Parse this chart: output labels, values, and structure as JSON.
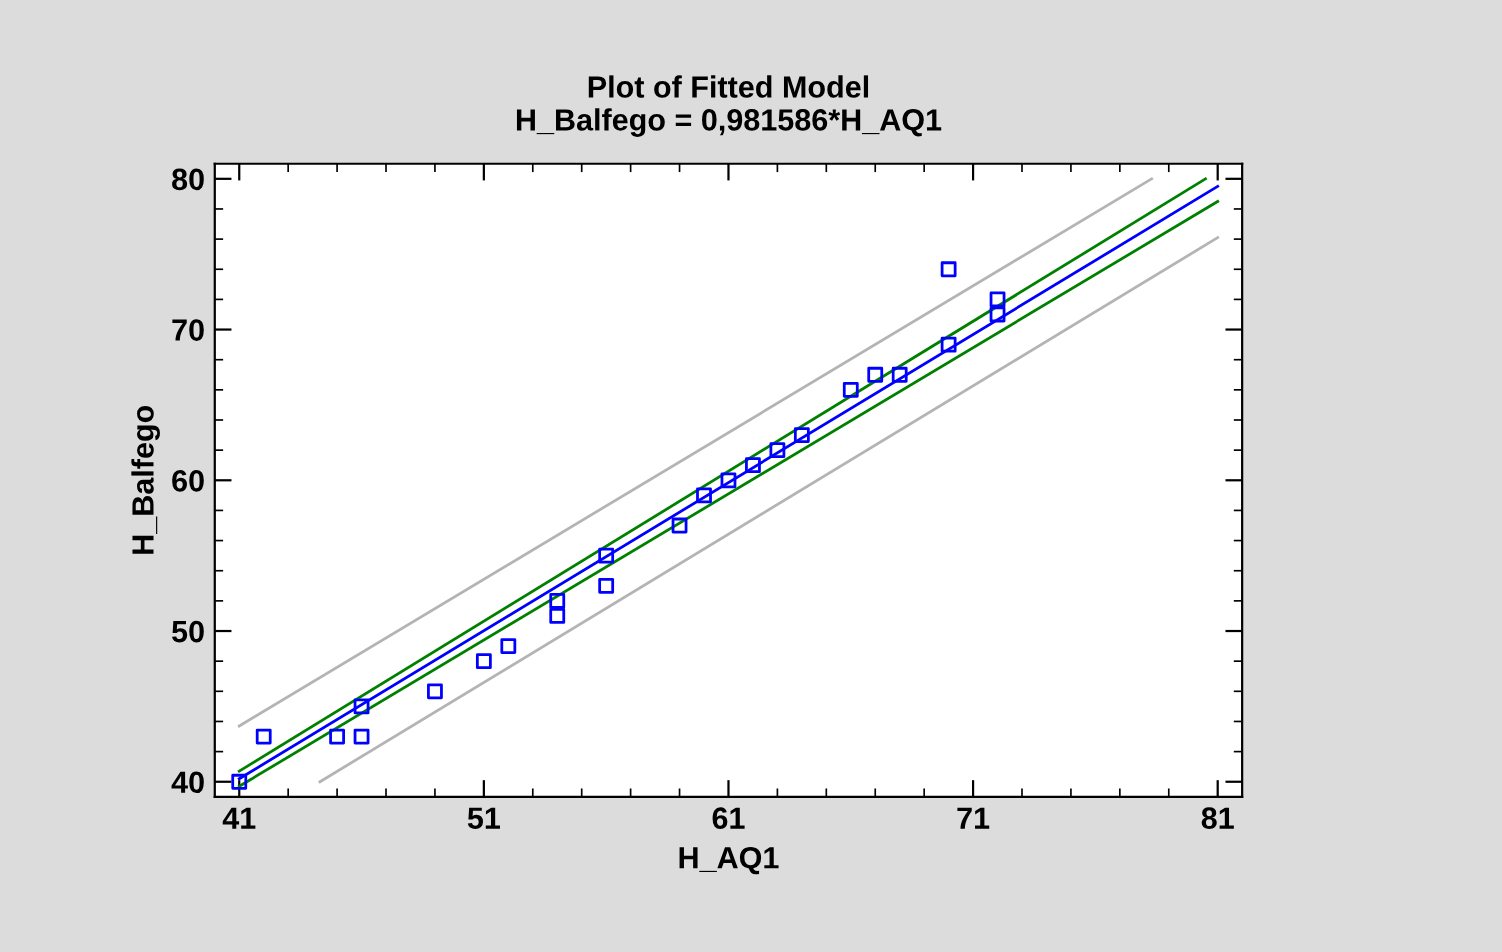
{
  "chart_data": {
    "type": "scatter",
    "title": "Plot of Fitted Model",
    "subtitle": "H_Balfego = 0,981586*H_AQ1",
    "xlabel": "H_AQ1",
    "ylabel": "H_Balfego",
    "xlim": [
      40,
      82
    ],
    "ylim": [
      39,
      81
    ],
    "xticks": [
      41,
      51,
      61,
      71,
      81
    ],
    "yticks": [
      40,
      50,
      60,
      70,
      80
    ],
    "grid": false,
    "legend": false,
    "series": [
      {
        "type": "line",
        "marker": "none",
        "color": "#b4b4b4",
        "x": [
          41,
          78.3
        ],
        "values": [
          43.7,
          80
        ]
      },
      {
        "type": "line",
        "marker": "none",
        "color": "#b4b4b4",
        "x": [
          44.3,
          81
        ],
        "values": [
          40,
          76.1
        ]
      },
      {
        "type": "line",
        "marker": "none",
        "color": "#008000",
        "x": [
          41,
          80.5
        ],
        "values": [
          40.7,
          80
        ]
      },
      {
        "type": "line",
        "marker": "none",
        "color": "#008000",
        "x": [
          41,
          81
        ],
        "values": [
          39.7,
          78.5
        ]
      },
      {
        "type": "line",
        "marker": "none",
        "color": "#0000ff",
        "x": [
          41,
          81
        ],
        "values": [
          40.2,
          79.5
        ]
      },
      {
        "marker": "square",
        "color": "#0000ff",
        "x": [
          41,
          42,
          45,
          46,
          46,
          49,
          51,
          52,
          54,
          54,
          56,
          56,
          59,
          60,
          61,
          62,
          63,
          64,
          66,
          67,
          68,
          70,
          70,
          72,
          72
        ],
        "values": [
          40,
          43,
          43,
          45,
          43,
          46,
          48,
          49,
          52,
          51,
          55,
          53,
          57,
          59,
          60,
          61,
          62,
          63,
          66,
          67,
          67,
          74,
          69,
          72,
          71
        ]
      }
    ]
  }
}
